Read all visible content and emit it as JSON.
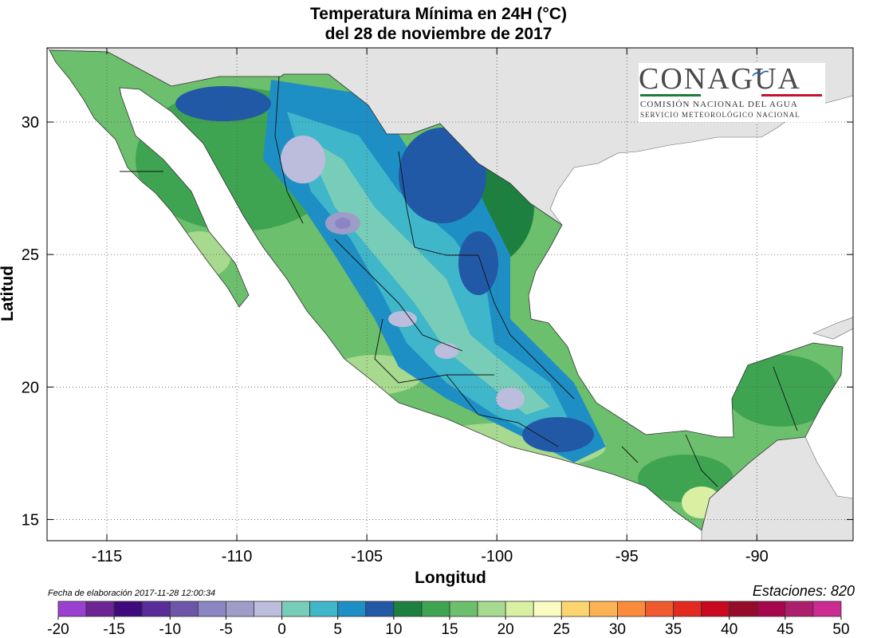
{
  "title_line1": "Temperatura Mínima en 24H (°C)",
  "title_line2": "del  28 de noviembre de 2017",
  "xlabel": "Longitud",
  "ylabel": "Latitud",
  "fecha": "Fecha de elaboración 2017-11-28 12:00:34",
  "estaciones": "Estaciones:  820",
  "logo": {
    "name": "CONAGUA",
    "subtitle1": "COMISIÓN NACIONAL DEL AGUA",
    "subtitle2": "SERVICIO METEOROLÓGICO NACIONAL",
    "colors": [
      "#1b7d3b",
      "#ffffff",
      "#c8102e"
    ]
  },
  "axes": {
    "lon_range": [
      -117.3,
      -86.3
    ],
    "lat_range": [
      14.2,
      32.8
    ],
    "lon_ticks": [
      -115,
      -110,
      -105,
      -100,
      -95,
      -90
    ],
    "lon_tick_labels": [
      "-115",
      "-110",
      "-105",
      "-100",
      "-95",
      "-90"
    ],
    "lat_ticks": [
      15,
      20,
      25,
      30
    ],
    "lat_tick_labels": [
      "15",
      "20",
      "25",
      "30"
    ],
    "grid": true
  },
  "colorbar": {
    "levels": [
      "-20",
      "-15",
      "-10",
      "-5",
      "0",
      "5",
      "10",
      "15",
      "20",
      "25",
      "30",
      "35",
      "40",
      "45",
      "50"
    ],
    "colors": [
      "#9b3fd1",
      "#6e2594",
      "#3f0a7c",
      "#5a2c9a",
      "#6d56a9",
      "#8b86c3",
      "#9e9cc8",
      "#bcbddd",
      "#78cdb8",
      "#3fb6c9",
      "#1e8fc4",
      "#2159a6",
      "#1e8040",
      "#3ea452",
      "#6cbf6c",
      "#a7d98f",
      "#d9f0a3",
      "#fbfcc2",
      "#fdd570",
      "#fdb254",
      "#f98b3a",
      "#ef5a2e",
      "#e32a21",
      "#c8091f",
      "#950c2a",
      "#a6064c",
      "#ad1f6c",
      "#cc2b92"
    ]
  },
  "legend_levels": [
    "<= -20 °C",
    "50 °C"
  ]
}
